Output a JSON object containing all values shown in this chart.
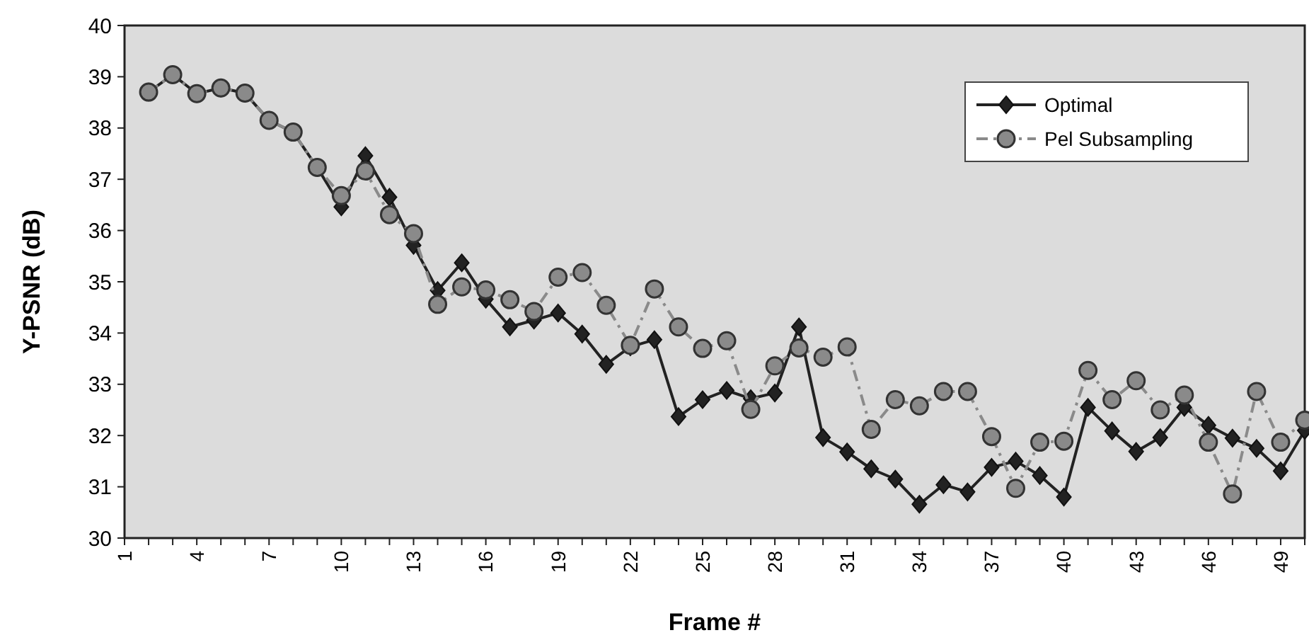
{
  "chart_data": {
    "type": "line",
    "xlabel": "Frame #",
    "ylabel": "Y-PSNR (dB)",
    "categories": [
      "1",
      null,
      null,
      "4",
      null,
      null,
      "7",
      null,
      null,
      "10",
      null,
      null,
      "13",
      null,
      null,
      "16",
      null,
      null,
      "19",
      null,
      null,
      "22",
      null,
      null,
      "25",
      null,
      null,
      "28",
      null,
      null,
      "31",
      null,
      null,
      "34",
      null,
      null,
      "37",
      null,
      null,
      "40",
      null,
      null,
      "43",
      null,
      null,
      "46",
      null,
      null,
      "49",
      null
    ],
    "series": [
      {
        "name": "Optimal",
        "color": "#222222",
        "marker": "diamond",
        "line_style": "solid",
        "values": [
          null,
          38.7,
          39.04,
          38.67,
          38.78,
          38.68,
          38.15,
          37.92,
          37.23,
          36.46,
          37.46,
          36.65,
          35.71,
          34.83,
          35.37,
          34.66,
          34.12,
          34.25,
          34.39,
          33.98,
          33.39,
          33.73,
          33.87,
          32.37,
          32.7,
          32.88,
          32.72,
          32.83,
          34.12,
          31.96,
          31.68,
          31.35,
          31.15,
          30.66,
          31.04,
          30.9,
          31.38,
          31.5,
          31.22,
          30.8,
          32.55,
          32.09,
          31.69,
          31.96,
          32.55,
          32.2,
          31.95,
          31.75,
          31.31,
          32.1
        ]
      },
      {
        "name": "Pel Subsampling",
        "color": "#8a8a8a",
        "marker": "circle",
        "line_style": "dashed",
        "values": [
          null,
          38.7,
          39.04,
          38.67,
          38.78,
          38.68,
          38.15,
          37.92,
          37.23,
          36.68,
          37.16,
          36.31,
          35.94,
          34.56,
          34.9,
          34.84,
          34.65,
          34.42,
          35.09,
          35.18,
          34.54,
          33.76,
          34.86,
          34.12,
          33.7,
          33.85,
          32.51,
          33.36,
          33.71,
          33.53,
          33.73,
          32.12,
          32.7,
          32.58,
          32.86,
          32.86,
          31.98,
          30.97,
          31.87,
          31.89,
          33.27,
          32.7,
          33.07,
          32.5,
          32.79,
          31.87,
          30.86,
          32.86,
          31.87,
          32.3
        ]
      }
    ],
    "ylim": [
      30,
      40
    ],
    "yticks": [
      30,
      31,
      32,
      33,
      34,
      35,
      36,
      37,
      38,
      39,
      40
    ],
    "grid": false,
    "legend": "top right"
  }
}
